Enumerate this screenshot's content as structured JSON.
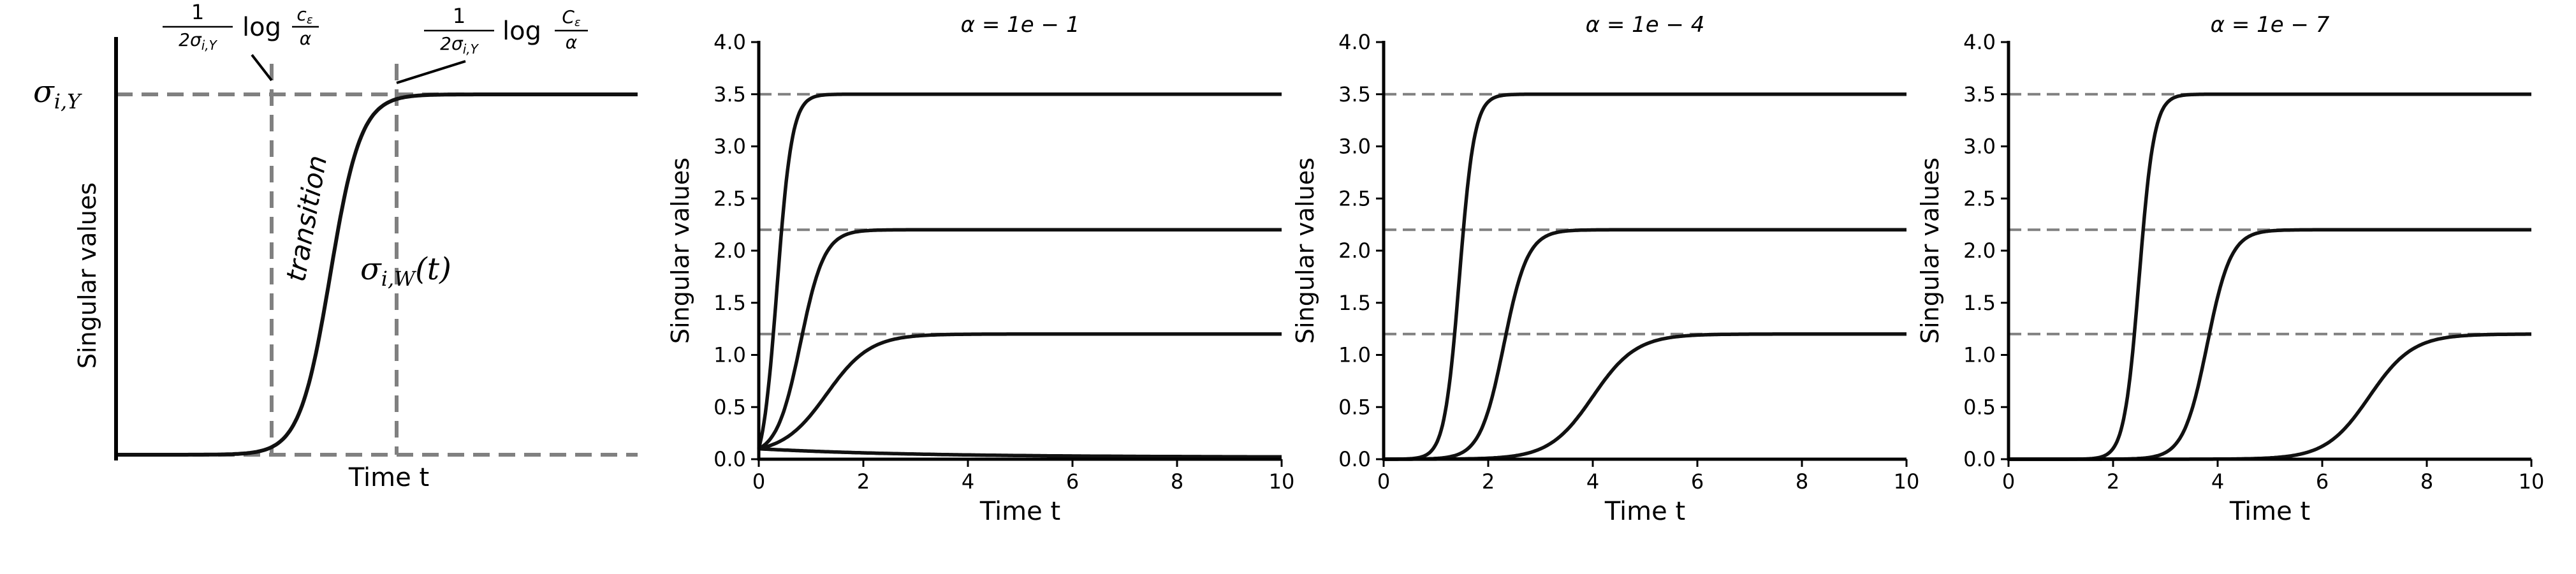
{
  "colors": {
    "curve": "#111111",
    "reference": "#808080",
    "axis": "#000000"
  },
  "chart_data": [
    {
      "type": "line",
      "title": "",
      "xlabel": "Time t",
      "ylabel": "Singular values",
      "grid": false,
      "ticks_shown": false,
      "annotations": {
        "y_reference": "σi,Y",
        "left_vertical": "1/(2σi,Y) log(cε/α)",
        "right_vertical": "1/(2σi,Y) log(Cε/α)",
        "transition": "transition",
        "curve": "σi,W(t)"
      }
    },
    {
      "type": "line",
      "title": "α = 1e − 1",
      "xlabel": "Time t",
      "ylabel": "Singular values",
      "xlim": [
        0,
        10
      ],
      "ylim": [
        0,
        4
      ],
      "xticks": [
        "0",
        "2",
        "4",
        "6",
        "8",
        "10"
      ],
      "yticks": [
        "0.0",
        "0.5",
        "1.0",
        "1.5",
        "2.0",
        "2.5",
        "3.0",
        "3.5",
        "4.0"
      ],
      "reference_levels": [
        3.5,
        2.2,
        1.2
      ],
      "grid": false,
      "series": [
        {
          "target": 3.5,
          "midpoint": 0.35,
          "initial": 0.1
        },
        {
          "target": 2.2,
          "midpoint": 0.8,
          "initial": 0.1
        },
        {
          "target": 1.2,
          "midpoint": 1.3,
          "initial": 0.1
        },
        {
          "target": 0.0,
          "decay_from": 0.1,
          "end_value": 0.02
        }
      ]
    },
    {
      "type": "line",
      "title": "α = 1e − 4",
      "xlabel": "Time t",
      "ylabel": "Singular values",
      "xlim": [
        0,
        10
      ],
      "ylim": [
        0,
        4
      ],
      "xticks": [
        "0",
        "2",
        "4",
        "6",
        "8",
        "10"
      ],
      "yticks": [
        "0.0",
        "0.5",
        "1.0",
        "1.5",
        "2.0",
        "2.5",
        "3.0",
        "3.5",
        "4.0"
      ],
      "reference_levels": [
        3.5,
        2.2,
        1.2
      ],
      "grid": false,
      "series": [
        {
          "target": 3.5,
          "midpoint": 1.45,
          "initial": 0.0
        },
        {
          "target": 2.2,
          "midpoint": 2.3,
          "initial": 0.0
        },
        {
          "target": 1.2,
          "midpoint": 4.0,
          "initial": 0.0
        }
      ]
    },
    {
      "type": "line",
      "title": "α = 1e − 7",
      "xlabel": "Time t",
      "ylabel": "Singular values",
      "xlim": [
        0,
        10
      ],
      "ylim": [
        0,
        4
      ],
      "xticks": [
        "0",
        "2",
        "4",
        "6",
        "8",
        "10"
      ],
      "yticks": [
        "0.0",
        "0.5",
        "1.0",
        "1.5",
        "2.0",
        "2.5",
        "3.0",
        "3.5",
        "4.0"
      ],
      "reference_levels": [
        3.5,
        2.2,
        1.2
      ],
      "grid": false,
      "series": [
        {
          "target": 3.5,
          "midpoint": 2.5,
          "initial": 0.0
        },
        {
          "target": 2.2,
          "midpoint": 3.8,
          "initial": 0.0
        },
        {
          "target": 1.2,
          "midpoint": 6.9,
          "initial": 0.0
        }
      ]
    }
  ]
}
